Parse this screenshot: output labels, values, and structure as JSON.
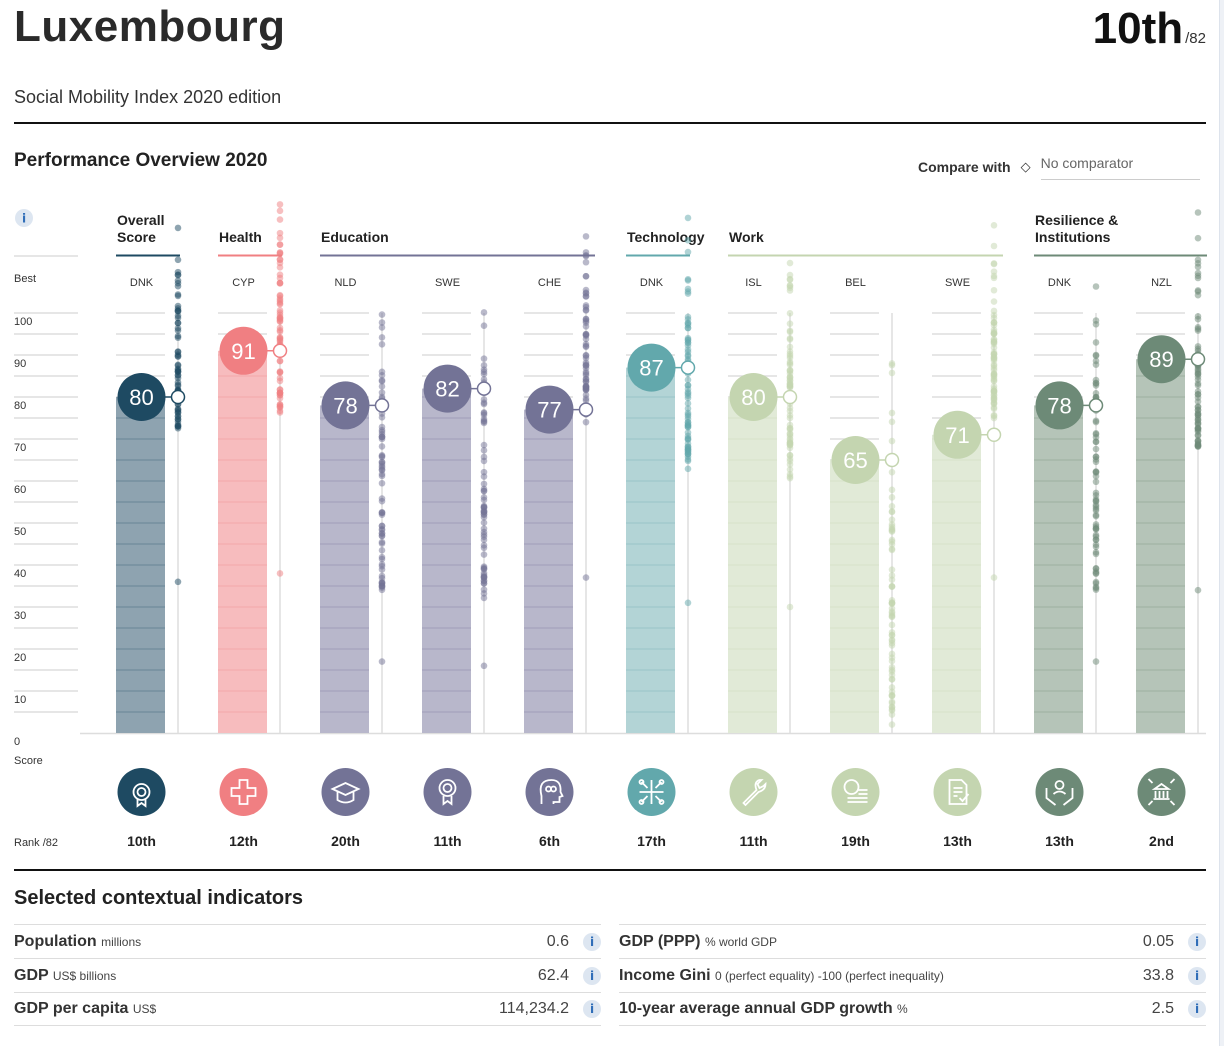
{
  "header": {
    "country": "Luxembourg",
    "overall_rank": "10th",
    "rank_of": "/82",
    "subtitle": "Social Mobility Index 2020 edition"
  },
  "overview": {
    "title": "Performance Overview 2020",
    "compare_label": "Compare with",
    "compare_icon": "diamond-icon",
    "comparator_value": "No comparator"
  },
  "chart_data": {
    "type": "bar",
    "title": "Performance Overview 2020",
    "ylabel": "Score",
    "ylim": [
      0,
      100
    ],
    "yticks": [
      0,
      10,
      20,
      30,
      40,
      50,
      60,
      70,
      80,
      90,
      100
    ],
    "axis_labels": {
      "best": "Best",
      "score": "Score",
      "rank": "Rank /82"
    },
    "grid": true,
    "groups": [
      {
        "label": "Overall Score",
        "color": "#1e4a62",
        "span": 1
      },
      {
        "label": "Health",
        "color": "#f07f82",
        "span": 1
      },
      {
        "label": "Education",
        "color": "#737396",
        "span": 3
      },
      {
        "label": "Technology",
        "color": "#62a8ac",
        "span": 1
      },
      {
        "label": "Work",
        "color": "#c4d5b0",
        "span": 3
      },
      {
        "label": "Resilience & Institutions",
        "color": "#6d8a77",
        "span": 2
      }
    ],
    "pillars": [
      {
        "best": "DNK",
        "score": 80,
        "rank": "10th",
        "icon": "award-rosette-icon",
        "color": "#1e4a62",
        "bar": "#8ea3b0",
        "group": 0
      },
      {
        "best": "CYP",
        "score": 91,
        "rank": "12th",
        "icon": "health-cross-icon",
        "color": "#f07f82",
        "bar": "#f7bcbe",
        "group": 1
      },
      {
        "best": "NLD",
        "score": 78,
        "rank": "20th",
        "icon": "graduation-cap-icon",
        "color": "#737396",
        "bar": "#b8b7cb",
        "group": 2
      },
      {
        "best": "SWE",
        "score": 82,
        "rank": "11th",
        "icon": "medal-icon",
        "color": "#737396",
        "bar": "#b8b7cb",
        "group": 2
      },
      {
        "best": "CHE",
        "score": 77,
        "rank": "6th",
        "icon": "head-learning-icon",
        "color": "#737396",
        "bar": "#b8b7cb",
        "group": 2
      },
      {
        "best": "DNK",
        "score": 87,
        "rank": "17th",
        "icon": "circuit-icon",
        "color": "#62a8ac",
        "bar": "#b3d4d6",
        "group": 3
      },
      {
        "best": "ISL",
        "score": 80,
        "rank": "11th",
        "icon": "wrench-icon",
        "color": "#c4d5b0",
        "bar": "#e1ead7",
        "group": 4
      },
      {
        "best": "BEL",
        "score": 65,
        "rank": "19th",
        "icon": "coins-icon",
        "color": "#c4d5b0",
        "bar": "#e1ead7",
        "group": 4
      },
      {
        "best": "SWE",
        "score": 71,
        "rank": "13th",
        "icon": "contract-check-icon",
        "color": "#c4d5b0",
        "bar": "#e1ead7",
        "group": 4
      },
      {
        "best": "DNK",
        "score": 78,
        "rank": "13th",
        "icon": "hands-person-icon",
        "color": "#6d8a77",
        "bar": "#b5c4b8",
        "group": 5
      },
      {
        "best": "NZL",
        "score": 89,
        "rank": "2nd",
        "icon": "institution-arrows-icon",
        "color": "#6d8a77",
        "bar": "#b5c4b8",
        "group": 5
      }
    ],
    "distribution_ranges": [
      [
        36,
        86
      ],
      [
        38,
        94
      ],
      [
        17,
        86
      ],
      [
        16,
        86
      ],
      [
        37,
        82
      ],
      [
        31,
        94
      ],
      [
        30,
        88
      ],
      [
        2,
        88
      ],
      [
        37,
        84
      ],
      [
        17,
        90
      ],
      [
        34,
        91
      ]
    ]
  },
  "context": {
    "title": "Selected contextual indicators",
    "left": [
      {
        "label": "Population",
        "unit": "millions",
        "value": "0.6"
      },
      {
        "label": "GDP",
        "unit": "US$ billions",
        "value": "62.4"
      },
      {
        "label": "GDP per capita",
        "unit": "US$",
        "value": "114,234.2"
      }
    ],
    "right": [
      {
        "label": "GDP (PPP)",
        "unit": "% world GDP",
        "value": "0.05"
      },
      {
        "label": "Income Gini",
        "unit": "0 (perfect equality) -100 (perfect inequality)",
        "value": "33.8"
      },
      {
        "label": "10-year average annual GDP growth",
        "unit": "%",
        "value": "2.5"
      }
    ],
    "info_glyph": "i"
  }
}
